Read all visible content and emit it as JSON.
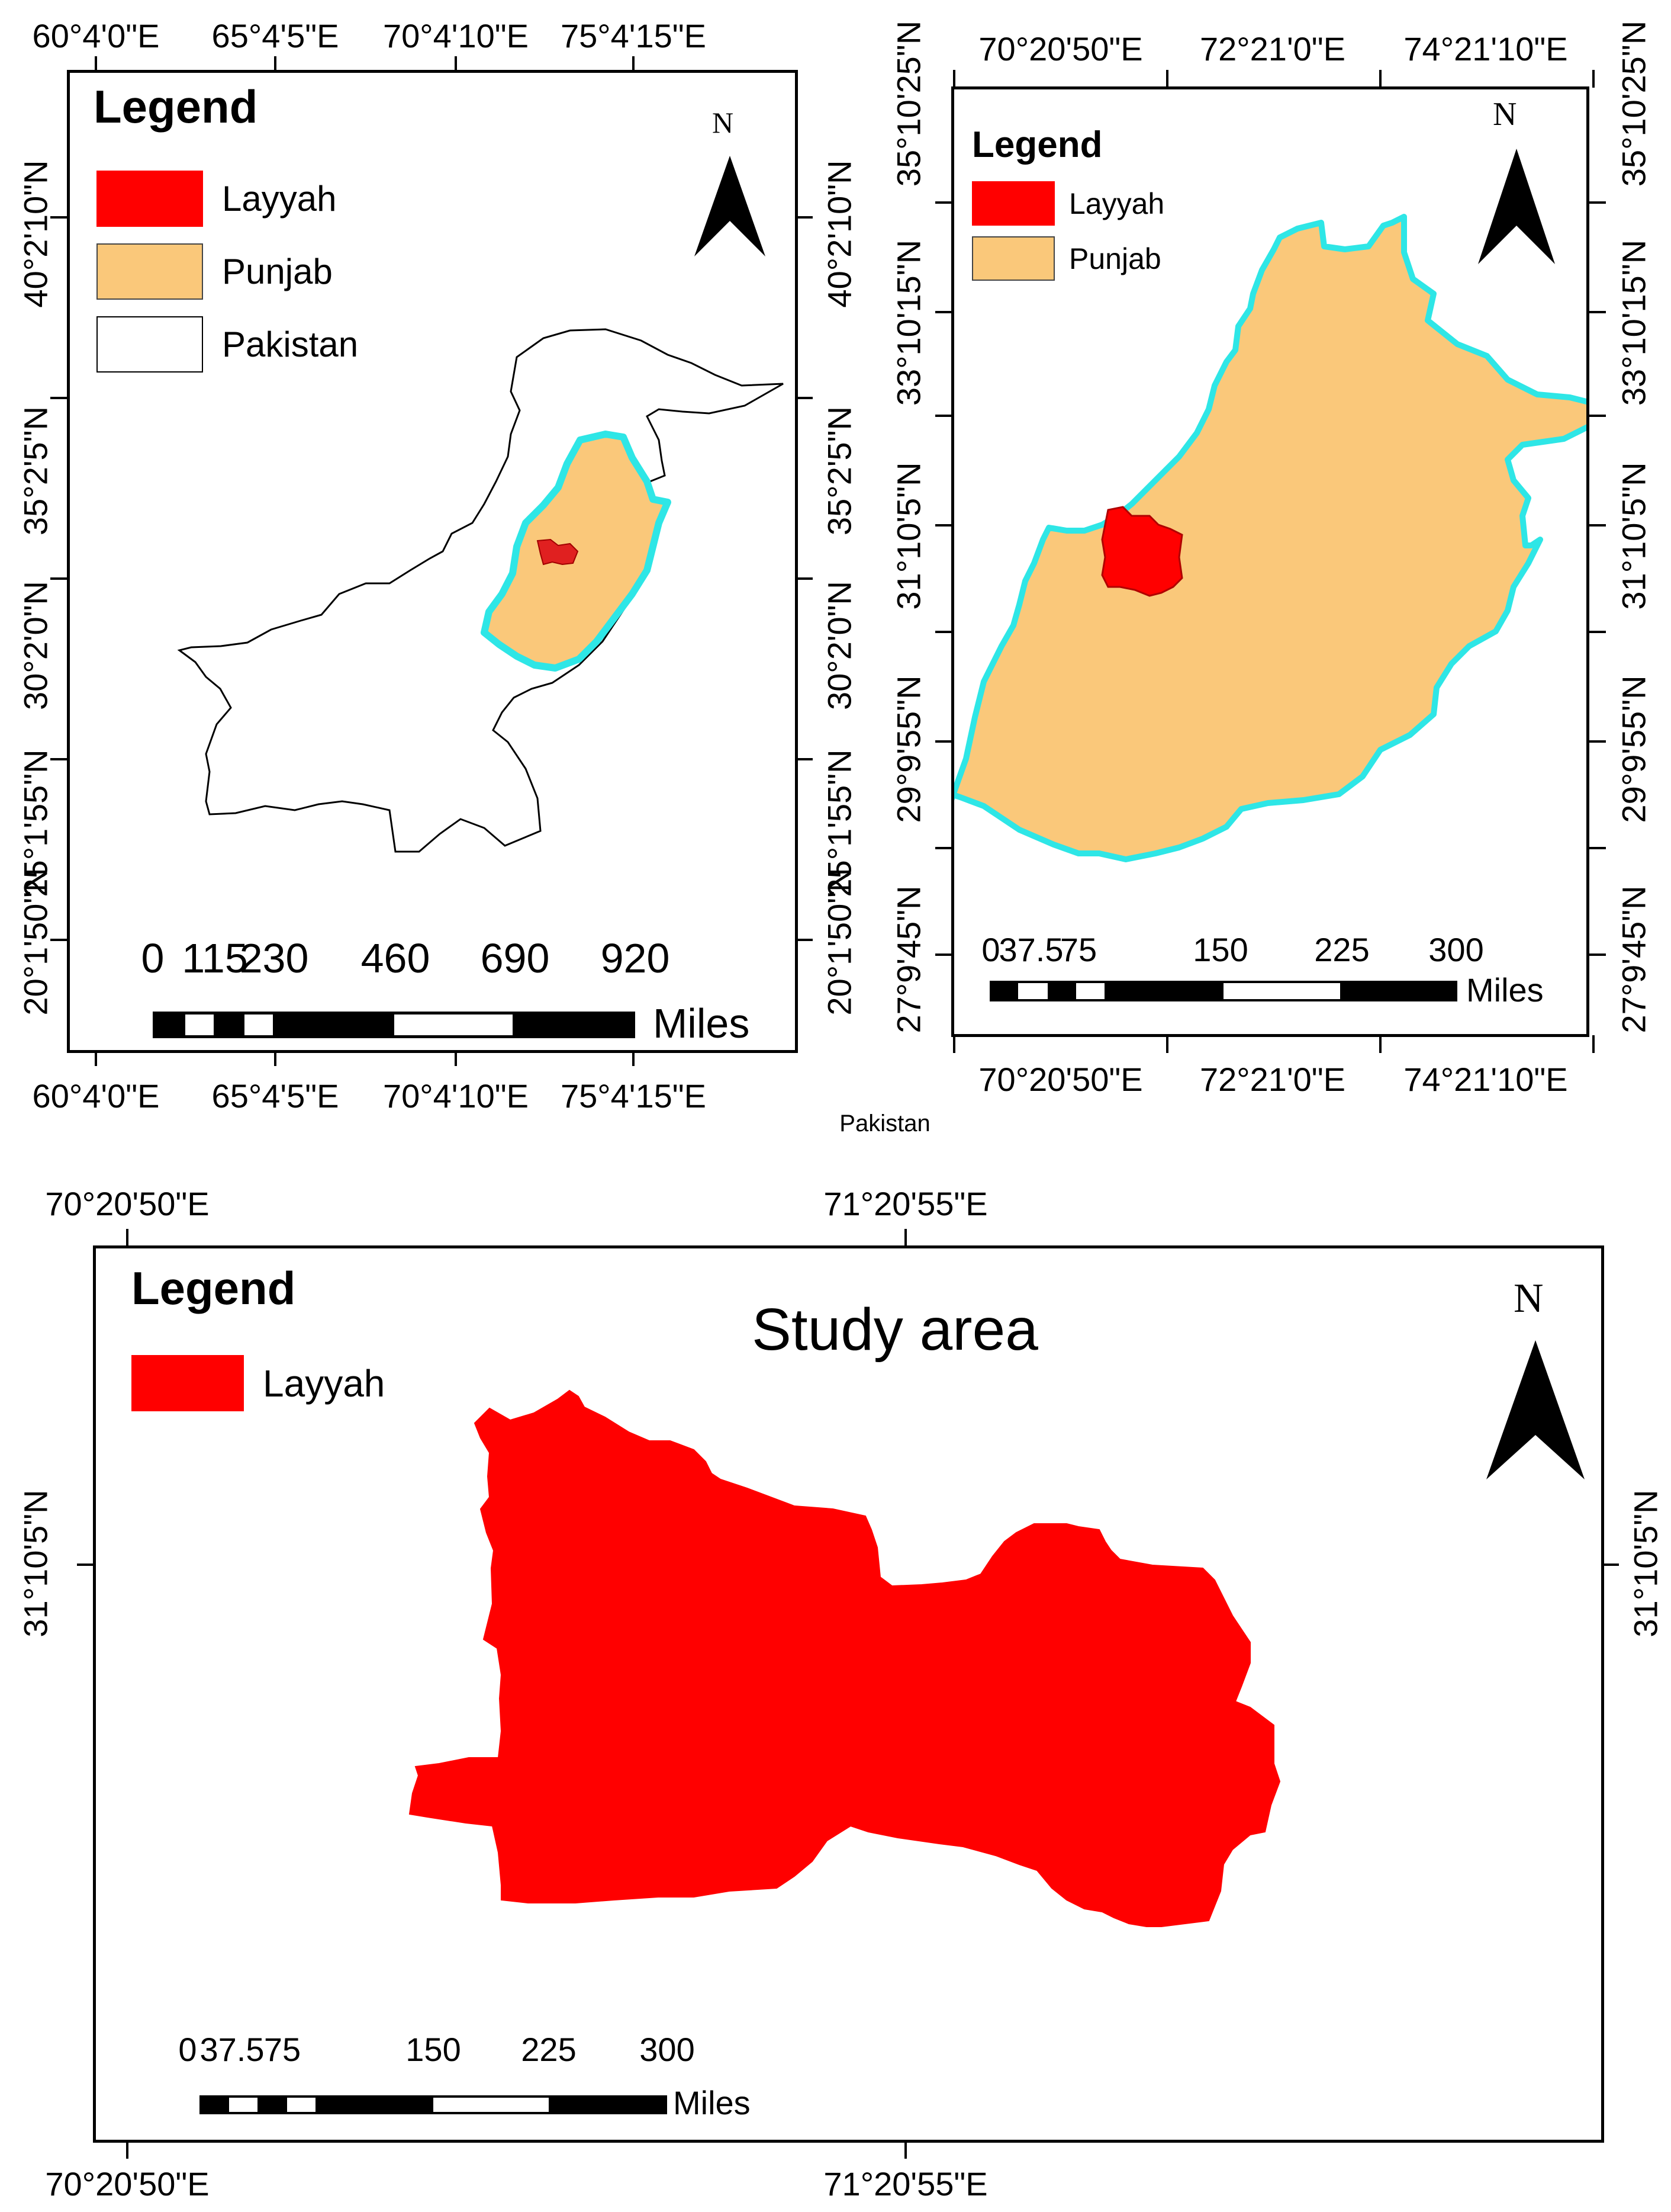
{
  "colors": {
    "layyah": "#ff0000",
    "punjab": "#fac87a",
    "pakistan": "#ffffff",
    "punjab_border": "#2ee6e6",
    "frame": "#000000"
  },
  "center_caption": "Pakistan",
  "map1": {
    "legend": {
      "title": "Legend",
      "items": [
        {
          "label": "Layyah",
          "color": "#ff0000"
        },
        {
          "label": "Punjab",
          "color": "#fac87a"
        },
        {
          "label": "Pakistan",
          "color": "#ffffff"
        }
      ]
    },
    "north": "N",
    "lon_labels": [
      "60°4'0\"E",
      "65°4'5\"E",
      "70°4'10\"E",
      "75°4'15\"E"
    ],
    "lat_labels": [
      "40°2'10\"N",
      "35°2'5\"N",
      "30°2'0\"N",
      "25°1'55\"N",
      "20°1'50\"N"
    ],
    "scale": {
      "ticks": [
        "0",
        "115",
        "230",
        "460",
        "690",
        "920"
      ],
      "unit": "Miles"
    }
  },
  "map2": {
    "legend": {
      "title": "Legend",
      "items": [
        {
          "label": "Layyah",
          "color": "#ff0000"
        },
        {
          "label": "Punjab",
          "color": "#fac87a"
        }
      ]
    },
    "north": "N",
    "lon_labels": [
      "70°20'50\"E",
      "72°21'0\"E",
      "74°21'10\"E"
    ],
    "lat_labels": [
      "35°10'25\"N",
      "33°10'15\"N",
      "31°10'5\"N",
      "29°9'55\"N",
      "27°9'45\"N"
    ],
    "scale": {
      "ticks": [
        "0",
        "37.5",
        "75",
        "150",
        "225",
        "300"
      ],
      "unit": "Miles"
    }
  },
  "map3": {
    "title": "Study area",
    "legend": {
      "title": "Legend",
      "items": [
        {
          "label": "Layyah",
          "color": "#ff0000"
        }
      ]
    },
    "north": "N",
    "lon_labels": [
      "70°20'50\"E",
      "71°20'55\"E"
    ],
    "lat_labels": [
      "31°10'5\"N"
    ],
    "scale": {
      "ticks": [
        "0",
        "37.5",
        "75",
        "150",
        "225",
        "300"
      ],
      "unit": "Miles"
    }
  }
}
